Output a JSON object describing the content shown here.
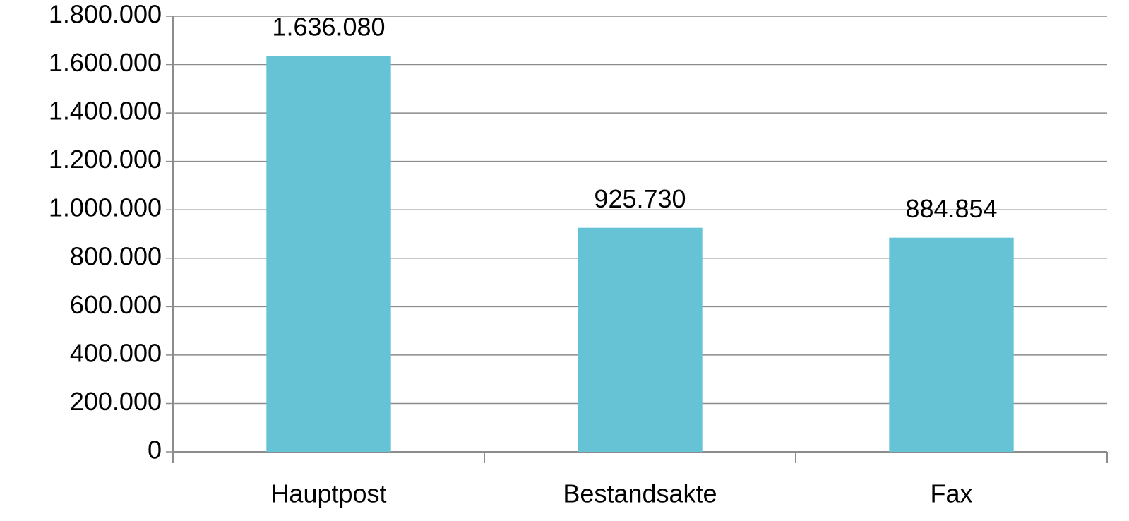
{
  "chart_data": {
    "type": "bar",
    "categories": [
      "Hauptpost",
      "Bestandsakte",
      "Fax"
    ],
    "values": [
      1636080,
      925730,
      884854
    ],
    "value_labels": [
      "1.636.080",
      "925.730",
      "884.854"
    ],
    "color": "#65c3d5",
    "ylim": [
      0,
      1800000
    ],
    "yticks": [
      0,
      {
        "value": 200000,
        "label": "200.000"
      },
      {
        "value": 400000,
        "label": "400.000"
      },
      {
        "value": 600000,
        "label": "600.000"
      },
      {
        "value": 800000,
        "label": "800.000"
      },
      {
        "value": 1000000,
        "label": "1.000.000"
      },
      {
        "value": 1200000,
        "label": "1.200.000"
      },
      {
        "value": 1400000,
        "label": "1.400.000"
      },
      {
        "value": 1600000,
        "label": "1.600.000"
      },
      {
        "value": 1800000,
        "label": "1.800.000"
      }
    ],
    "grid": true
  }
}
